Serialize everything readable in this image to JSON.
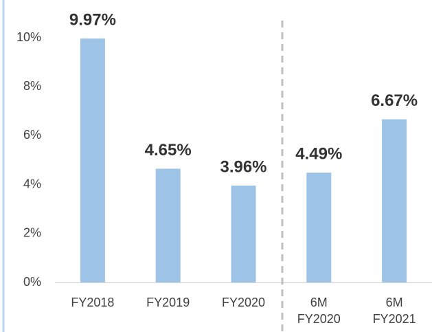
{
  "chart_data": {
    "type": "bar",
    "categories": [
      "FY2018",
      "FY2019",
      "FY2020",
      "6M FY2020",
      "6M FY2021"
    ],
    "values": [
      9.97,
      4.65,
      3.96,
      4.49,
      6.67
    ],
    "value_labels": [
      "9.97%",
      "4.65%",
      "3.96%",
      "4.49%",
      "6.67%"
    ],
    "color": "#9dc3e6",
    "ylim": [
      0,
      10
    ],
    "yticks": [
      {
        "value": 0,
        "label": "0%"
      },
      {
        "value": 2,
        "label": "2%"
      },
      {
        "value": 4,
        "label": "4%"
      },
      {
        "value": 6,
        "label": "6%"
      },
      {
        "value": 8,
        "label": "8%"
      },
      {
        "value": 10,
        "label": "10%"
      }
    ],
    "grid": false
  }
}
